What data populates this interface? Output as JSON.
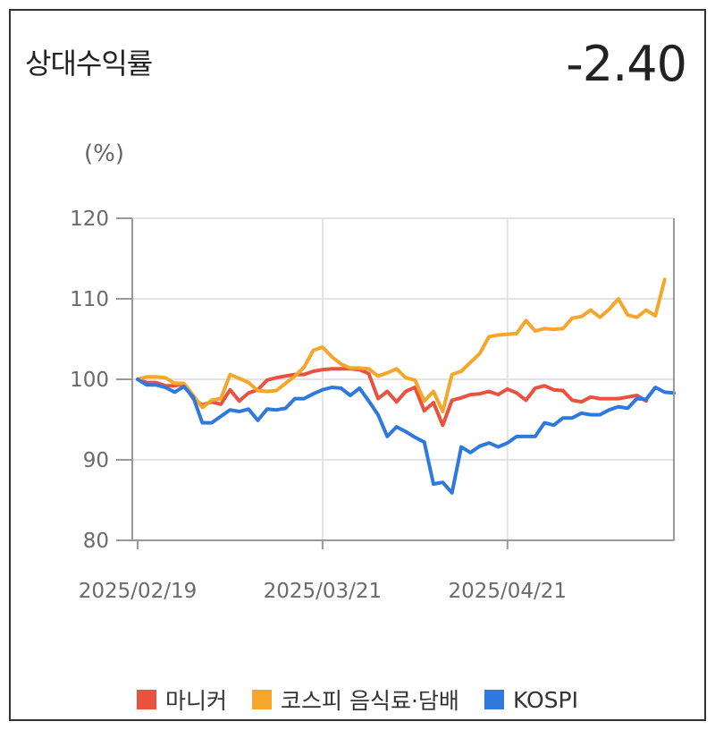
{
  "header": {
    "title": "상대수익률",
    "value": "-2.40",
    "unit": "(%)"
  },
  "chart_data": {
    "type": "line",
    "title": "상대수익률",
    "ylabel": "(%)",
    "ylim": [
      80,
      120
    ],
    "yticks": [
      "80",
      "90",
      "100",
      "110",
      "120"
    ],
    "xtick_labels": [
      "2025/02/19",
      "2025/03/21",
      "2025/04/21"
    ],
    "xtick_indices": [
      0,
      20,
      40
    ],
    "grid": true,
    "legend_position": "bottom",
    "series": [
      {
        "name": "마니커",
        "color": "#e8523f",
        "values": [
          100,
          99.6,
          99.6,
          99.2,
          99.2,
          99.4,
          97.6,
          96.8,
          97.2,
          96.9,
          98.7,
          97.3,
          98.3,
          98.7,
          99.9,
          100.2,
          100.4,
          100.6,
          100.6,
          101,
          101.2,
          101.3,
          101.3,
          101.3,
          101.2,
          100.7,
          97.6,
          98.5,
          97.2,
          98.5,
          99,
          96.1,
          97.1,
          94.3,
          97.4,
          97.7,
          98.1,
          98.2,
          98.5,
          98.1,
          98.8,
          98.3,
          97.4,
          98.9,
          99.2,
          98.7,
          98.6,
          97.4,
          97.2,
          97.8,
          97.6,
          97.6,
          97.6,
          97.8,
          98,
          97.3
        ]
      },
      {
        "name": "코스피 음식료·담배",
        "color": "#f5a62b",
        "values": [
          100,
          100.3,
          100.3,
          100.2,
          99.5,
          99.5,
          98,
          96.5,
          97.4,
          97.6,
          100.6,
          100.1,
          99.6,
          98.6,
          98.5,
          98.6,
          99.5,
          100.4,
          101.5,
          103.6,
          104,
          102.8,
          101.9,
          101.4,
          101.4,
          101.3,
          100.4,
          100.8,
          101.3,
          100.2,
          99.9,
          97.3,
          98.5,
          96,
          100.6,
          101,
          102.1,
          103.2,
          105.3,
          105.5,
          105.6,
          105.7,
          107.3,
          106,
          106.3,
          106.2,
          106.3,
          107.6,
          107.8,
          108.6,
          107.7,
          108.7,
          110,
          108,
          107.7,
          108.6,
          107.9,
          112.4
        ]
      },
      {
        "name": "KOSPI",
        "color": "#2f78dc",
        "values": [
          100,
          99.3,
          99.3,
          99,
          98.4,
          99.1,
          97.8,
          94.6,
          94.6,
          95.4,
          96.2,
          96,
          96.3,
          94.9,
          96.3,
          96.2,
          96.4,
          97.6,
          97.6,
          98.2,
          98.7,
          99,
          98.9,
          98,
          98.9,
          97.3,
          95.6,
          92.9,
          94.1,
          93.5,
          92.8,
          92.2,
          87,
          87.2,
          85.9,
          91.6,
          90.9,
          91.7,
          92.1,
          91.6,
          92.1,
          92.9,
          92.9,
          92.9,
          94.6,
          94.3,
          95.2,
          95.2,
          95.8,
          95.6,
          95.6,
          96.2,
          96.6,
          96.4,
          97.6,
          97.5,
          99,
          98.4,
          98.3
        ]
      }
    ]
  }
}
